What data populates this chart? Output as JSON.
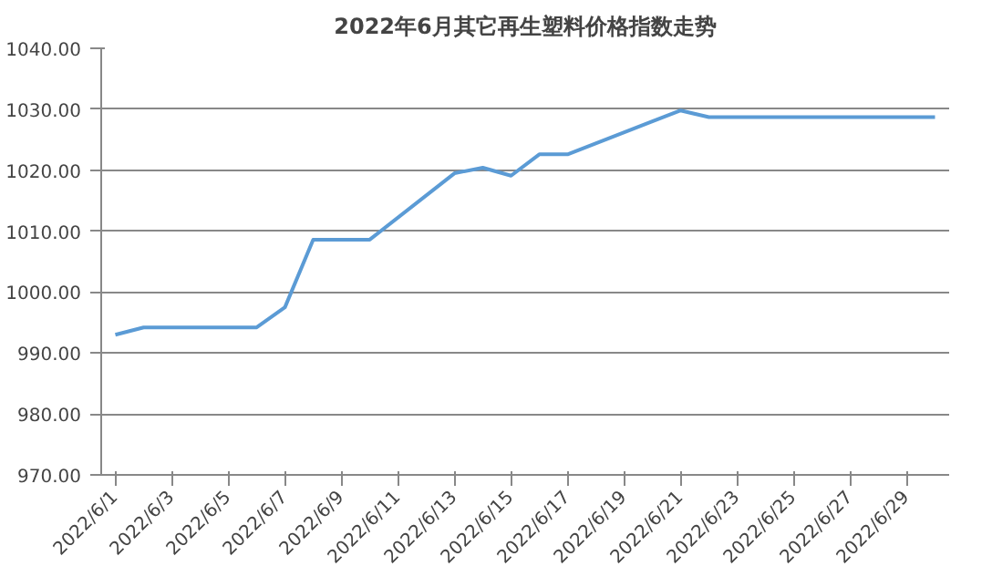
{
  "chart_data": {
    "type": "line",
    "title": "2022年6月其它再生塑料价格指数走势",
    "x": [
      "2022-06-01",
      "2022-06-02",
      "2022-06-06",
      "2022-06-07",
      "2022-06-08",
      "2022-06-09",
      "2022-06-10",
      "2022-06-13",
      "2022-06-14",
      "2022-06-15",
      "2022-06-16",
      "2022-06-17",
      "2022-06-20",
      "2022-06-21",
      "2022-06-22",
      "2022-06-23",
      "2022-06-24",
      "2022-06-27",
      "2022-06-28",
      "2022-06-29",
      "2022-06-30"
    ],
    "series": [
      {
        "color": "#5b9bd5",
        "values": [
          993.0,
          994.2,
          994.2,
          997.5,
          1008.6,
          1008.6,
          1008.6,
          1019.5,
          1020.4,
          1019.1,
          1022.6,
          1022.6,
          1028.0,
          1029.8,
          1028.7,
          1028.7,
          1028.7,
          1028.7,
          1028.7,
          1028.7,
          1028.7
        ]
      }
    ],
    "xlim": [
      "2022-05-31T12:00",
      "2022-06-30T12:00"
    ],
    "xticks": [
      {
        "value": "2022-06-01",
        "label": "2022/6/1"
      },
      {
        "value": "2022-06-03",
        "label": "2022/6/3"
      },
      {
        "value": "2022-06-05",
        "label": "2022/6/5"
      },
      {
        "value": "2022-06-07",
        "label": "2022/6/7"
      },
      {
        "value": "2022-06-09",
        "label": "2022/6/9"
      },
      {
        "value": "2022-06-11",
        "label": "2022/6/11"
      },
      {
        "value": "2022-06-13",
        "label": "2022/6/13"
      },
      {
        "value": "2022-06-15",
        "label": "2022/6/15"
      },
      {
        "value": "2022-06-17",
        "label": "2022/6/17"
      },
      {
        "value": "2022-06-19",
        "label": "2022/6/19"
      },
      {
        "value": "2022-06-21",
        "label": "2022/6/21"
      },
      {
        "value": "2022-06-23",
        "label": "2022/6/23"
      },
      {
        "value": "2022-06-25",
        "label": "2022/6/25"
      },
      {
        "value": "2022-06-27",
        "label": "2022/6/27"
      },
      {
        "value": "2022-06-29",
        "label": "2022/6/29"
      }
    ],
    "ylim": [
      970,
      1040
    ],
    "yticks": [
      {
        "value": 970,
        "label": "970.00"
      },
      {
        "value": 980,
        "label": "980.00"
      },
      {
        "value": 990,
        "label": "990.00"
      },
      {
        "value": 1000,
        "label": "1000.00"
      },
      {
        "value": 1010,
        "label": "1010.00"
      },
      {
        "value": 1020,
        "label": "1020.00"
      },
      {
        "value": 1030,
        "label": "1030.00"
      },
      {
        "value": 1040,
        "label": "1040.00"
      }
    ],
    "grid": "y",
    "marker": "none",
    "line_style": "solid"
  }
}
